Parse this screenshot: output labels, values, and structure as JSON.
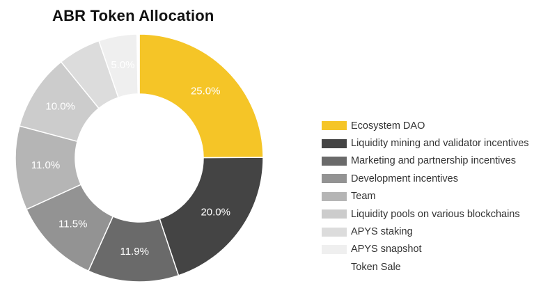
{
  "chart_data": {
    "type": "pie",
    "title": "ABR Token Allocation",
    "categories": [
      "Ecosystem DAO",
      "Liquidity mining and validator incentives",
      "Marketing and partnership incentives",
      "Development incentives",
      "Team",
      "Liquidity pools on various blockchains",
      "APYS staking",
      "APYS snapshot",
      "Token Sale"
    ],
    "values": [
      25.0,
      20.0,
      11.9,
      11.5,
      11.0,
      10.0,
      5.6,
      5.0,
      0.3
    ],
    "data_labels": [
      "25.0%",
      "20.0%",
      "11.9%",
      "11.5%",
      "11.0%",
      "10.0%",
      "",
      "5.0%",
      ""
    ],
    "colors": [
      "#f5c527",
      "#444444",
      "#6a6a6a",
      "#939393",
      "#b5b5b5",
      "#cccccc",
      "#dcdcdc",
      "#efefef",
      "#ffffff"
    ],
    "legend_position": "right",
    "hole": true
  }
}
